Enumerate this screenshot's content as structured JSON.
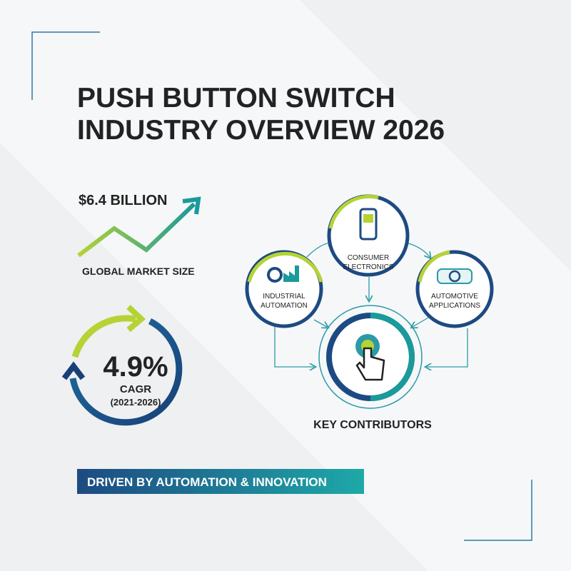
{
  "header": {
    "title_lines": [
      "PUSH BUTTON SWITCH",
      "INDUSTRY OVERVIEW 2026"
    ]
  },
  "market_size": {
    "value": "$6.4 BILLION",
    "label": "GLOBAL MARKET SIZE"
  },
  "growth": {
    "value": "4.9%",
    "label": "CAGR",
    "period": "(2021-2026)"
  },
  "contributors": {
    "nodes": [
      {
        "label_lines": [
          "INDUSTRIAL",
          "AUTOMATION"
        ]
      },
      {
        "label_lines": [
          "CONSUMER",
          "ELECTRONICS"
        ]
      },
      {
        "label_lines": [
          "AUTOMOTIVE",
          "APPLICATIONS"
        ]
      }
    ],
    "center_label": "KEY CONTRIBUTORS"
  },
  "banner": {
    "text": "DRIVEN BY AUTOMATION & INNOVATION"
  }
}
